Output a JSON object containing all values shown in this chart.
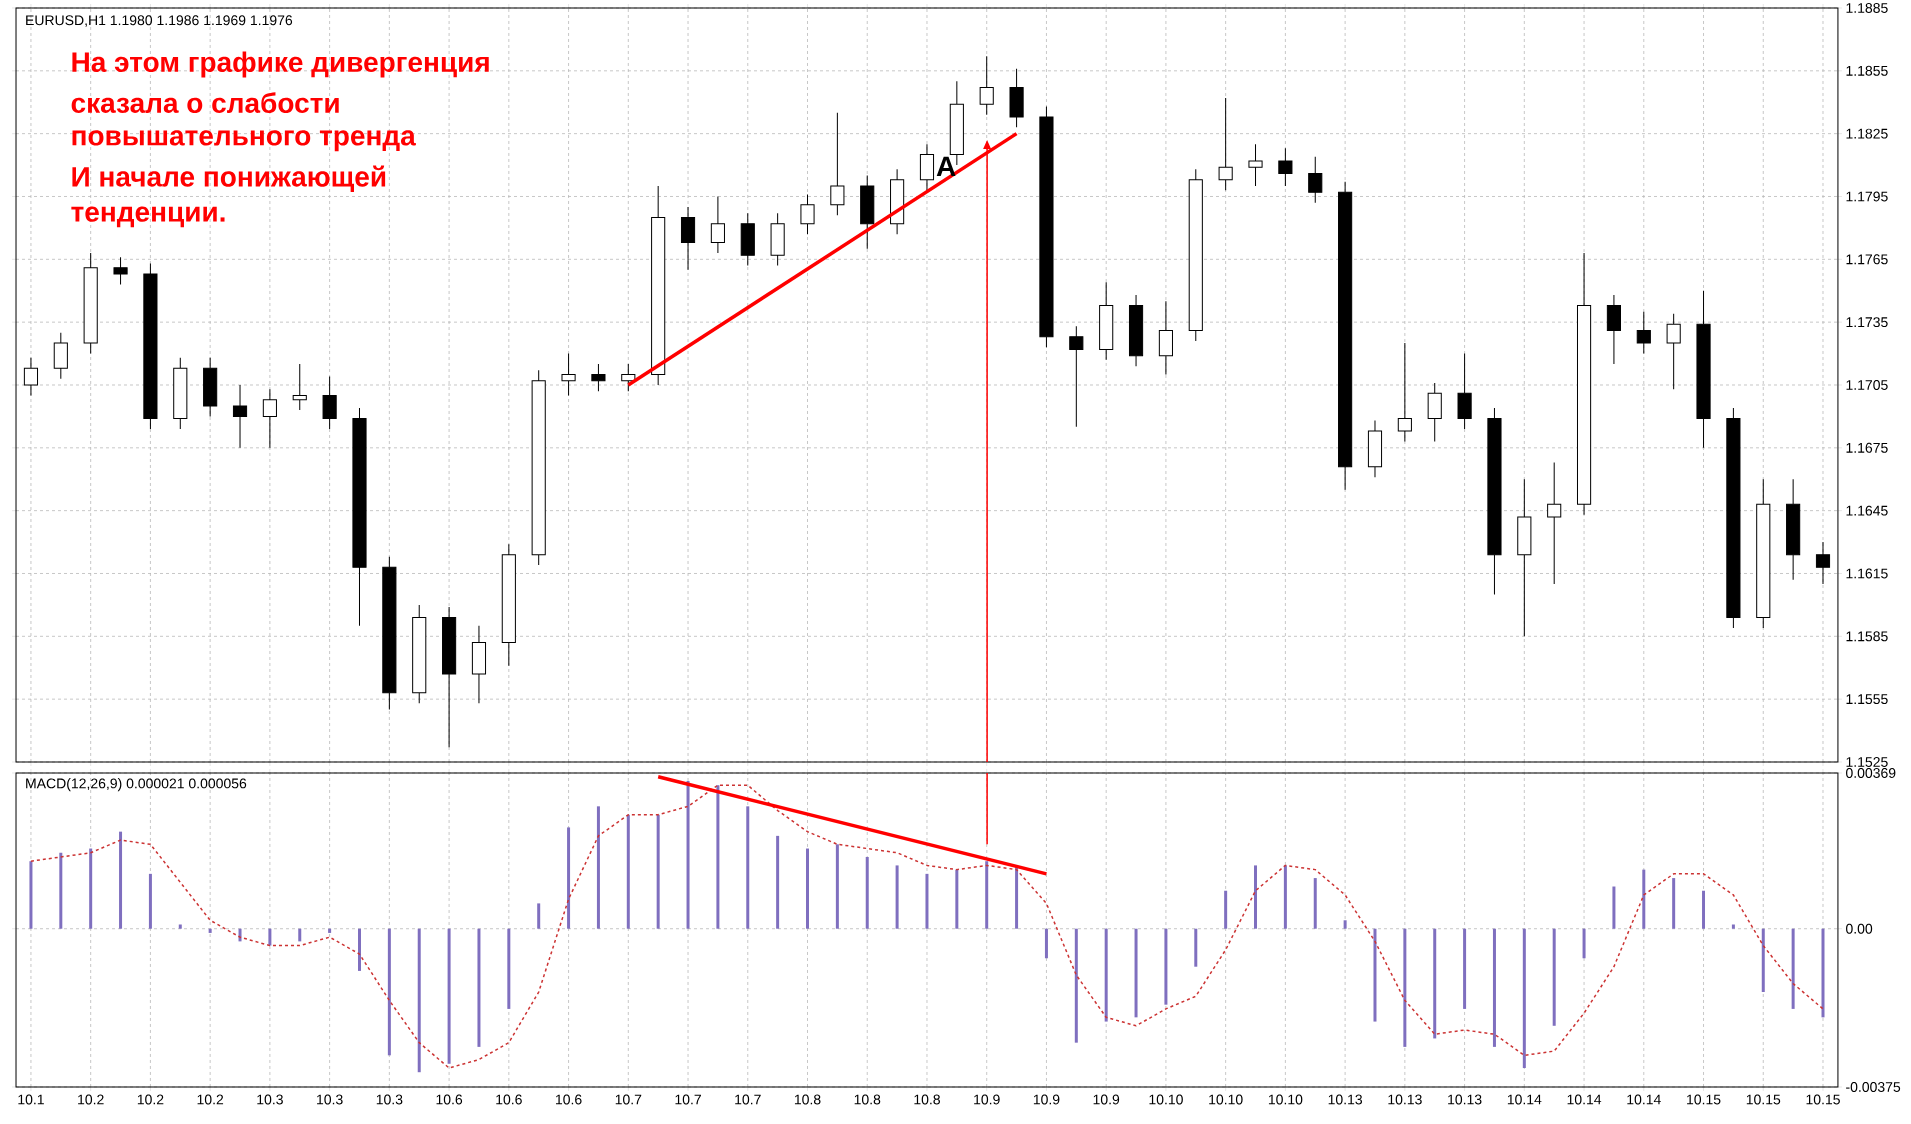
{
  "chart_data": [
    {
      "type": "candlestick",
      "title": "EURUSD,H1  1.1980 1.1986 1.1969 1.1976",
      "grid": true,
      "tick_labels": "y",
      "categories": [
        "10.1",
        null,
        "10.2",
        null,
        "10.2",
        null,
        "10.2",
        null,
        "10.3",
        null,
        "10.3",
        null,
        "10.3",
        null,
        "10.6",
        null,
        "10.6",
        null,
        "10.6",
        null,
        "10.7",
        null,
        "10.7",
        null,
        "10.7",
        null,
        "10.8",
        null,
        "10.8",
        null,
        "10.8",
        null,
        "10.9",
        null,
        "10.9",
        null,
        "10.9",
        null,
        "10.10",
        null,
        "10.10",
        null,
        "10.10",
        null,
        "10.13",
        null,
        "10.13",
        null,
        "10.13",
        null,
        "10.14",
        null,
        "10.14",
        null,
        "10.14",
        null,
        "10.15",
        null,
        "10.15",
        null,
        "10.15"
      ],
      "ylim": [
        1.1525,
        1.1885
      ],
      "yticks": [
        1.1525,
        1.1555,
        1.1585,
        1.1615,
        1.1645,
        1.1675,
        1.1705,
        1.1735,
        1.1765,
        1.1795,
        1.1825,
        1.1855,
        1.1885
      ],
      "annotations": [
        "На этом графике дивергенция",
        "сказала о слабости",
        "повышательного тренда",
        "И начале понижающей",
        "тенденции.",
        "A"
      ],
      "series": [
        {
          "color": "#000000",
          "ohlc": [
            [
              1.1705,
              1.1718,
              1.17,
              1.1713
            ],
            [
              1.1713,
              1.173,
              1.1708,
              1.1725
            ],
            [
              1.1725,
              1.1768,
              1.172,
              1.1761
            ],
            [
              1.1761,
              1.1766,
              1.1753,
              1.1758
            ],
            [
              1.1758,
              1.1763,
              1.1684,
              1.1689
            ],
            [
              1.1689,
              1.1718,
              1.1684,
              1.1713
            ],
            [
              1.1713,
              1.1718,
              1.169,
              1.1695
            ],
            [
              1.1695,
              1.1705,
              1.1675,
              1.169
            ],
            [
              1.169,
              1.1703,
              1.1675,
              1.1698
            ],
            [
              1.1698,
              1.1715,
              1.1693,
              1.17
            ],
            [
              1.17,
              1.1709,
              1.1684,
              1.1689
            ],
            [
              1.1689,
              1.1694,
              1.159,
              1.1618
            ],
            [
              1.1618,
              1.1623,
              1.155,
              1.1558
            ],
            [
              1.1558,
              1.16,
              1.1553,
              1.1594
            ],
            [
              1.1594,
              1.1599,
              1.1532,
              1.1567
            ],
            [
              1.1567,
              1.159,
              1.1553,
              1.1582
            ],
            [
              1.1582,
              1.1629,
              1.1571,
              1.1624
            ],
            [
              1.1624,
              1.1712,
              1.1619,
              1.1707
            ],
            [
              1.1707,
              1.172,
              1.17,
              1.171
            ],
            [
              1.171,
              1.1715,
              1.1702,
              1.1707
            ],
            [
              1.1707,
              1.1715,
              1.1702,
              1.171
            ],
            [
              1.171,
              1.18,
              1.1705,
              1.1785
            ],
            [
              1.1785,
              1.179,
              1.176,
              1.1773
            ],
            [
              1.1773,
              1.1795,
              1.1768,
              1.1782
            ],
            [
              1.1782,
              1.1787,
              1.1762,
              1.1767
            ],
            [
              1.1767,
              1.1787,
              1.1762,
              1.1782
            ],
            [
              1.1782,
              1.1796,
              1.1777,
              1.1791
            ],
            [
              1.1791,
              1.1835,
              1.1786,
              1.18
            ],
            [
              1.18,
              1.1805,
              1.177,
              1.1782
            ],
            [
              1.1782,
              1.1808,
              1.1777,
              1.1803
            ],
            [
              1.1803,
              1.182,
              1.1798,
              1.1815
            ],
            [
              1.1815,
              1.185,
              1.181,
              1.1839
            ],
            [
              1.1839,
              1.1862,
              1.1834,
              1.1847
            ],
            [
              1.1847,
              1.1856,
              1.1828,
              1.1833
            ],
            [
              1.1833,
              1.1838,
              1.1723,
              1.1728
            ],
            [
              1.1728,
              1.1733,
              1.1685,
              1.1722
            ],
            [
              1.1722,
              1.1754,
              1.1717,
              1.1743
            ],
            [
              1.1743,
              1.1748,
              1.1714,
              1.1719
            ],
            [
              1.1719,
              1.1745,
              1.171,
              1.1731
            ],
            [
              1.1731,
              1.1808,
              1.1726,
              1.1803
            ],
            [
              1.1803,
              1.1842,
              1.1798,
              1.1809
            ],
            [
              1.1809,
              1.182,
              1.18,
              1.1812
            ],
            [
              1.1812,
              1.1818,
              1.18,
              1.1806
            ],
            [
              1.1806,
              1.1814,
              1.1792,
              1.1797
            ],
            [
              1.1797,
              1.1802,
              1.1655,
              1.1666
            ],
            [
              1.1666,
              1.1688,
              1.1661,
              1.1683
            ],
            [
              1.1683,
              1.1725,
              1.1678,
              1.1689
            ],
            [
              1.1689,
              1.1706,
              1.1678,
              1.1701
            ],
            [
              1.1701,
              1.172,
              1.1684,
              1.1689
            ],
            [
              1.1689,
              1.1694,
              1.1605,
              1.1624
            ],
            [
              1.1624,
              1.166,
              1.1585,
              1.1642
            ],
            [
              1.1642,
              1.1668,
              1.161,
              1.1648
            ],
            [
              1.1648,
              1.1768,
              1.1643,
              1.1743
            ],
            [
              1.1743,
              1.1748,
              1.1715,
              1.1731
            ],
            [
              1.1731,
              1.174,
              1.172,
              1.1725
            ],
            [
              1.1725,
              1.1739,
              1.1703,
              1.1734
            ],
            [
              1.1734,
              1.175,
              1.1675,
              1.1689
            ],
            [
              1.1689,
              1.1694,
              1.1589,
              1.1594
            ],
            [
              1.1594,
              1.166,
              1.1589,
              1.1648
            ],
            [
              1.1648,
              1.166,
              1.1612,
              1.1624
            ],
            [
              1.1624,
              1.163,
              1.161,
              1.1618
            ]
          ]
        },
        {
          "type": "line",
          "color": "#ff0000",
          "line_style": "solid",
          "values": [
            null,
            null,
            null,
            null,
            null,
            null,
            null,
            null,
            null,
            null,
            null,
            null,
            null,
            null,
            null,
            null,
            null,
            null,
            null,
            null,
            1.1705,
            null,
            null,
            null,
            null,
            null,
            null,
            null,
            null,
            null,
            null,
            null,
            null,
            1.1825,
            null,
            null,
            null,
            null,
            null,
            null,
            null,
            null,
            null,
            null,
            null,
            null,
            null,
            null,
            null,
            null,
            null,
            null,
            null,
            null,
            null,
            null,
            null,
            null,
            null,
            null,
            null
          ]
        }
      ]
    },
    {
      "type": "bar",
      "title": "MACD(12,26,9)   0.000021  0.000056",
      "grid": true,
      "categories": [
        "10.1",
        null,
        "10.2",
        null,
        "10.2",
        null,
        "10.2",
        null,
        "10.3",
        null,
        "10.3",
        null,
        "10.3",
        null,
        "10.6",
        null,
        "10.6",
        null,
        "10.6",
        null,
        "10.7",
        null,
        "10.7",
        null,
        "10.7",
        null,
        "10.8",
        null,
        "10.8",
        null,
        "10.8",
        null,
        "10.9",
        null,
        "10.9",
        null,
        "10.9",
        null,
        "10.10",
        null,
        "10.10",
        null,
        "10.10",
        null,
        "10.13",
        null,
        "10.13",
        null,
        "10.13",
        null,
        "10.14",
        null,
        "10.14",
        null,
        "10.14",
        null,
        "10.15",
        null,
        "10.15",
        null,
        "10.15"
      ],
      "ylim": [
        -0.00375,
        0.00369
      ],
      "yticks": [
        -0.00375,
        {
          "value": 0,
          "label": "0.00"
        },
        0.00369
      ],
      "series": [
        {
          "color": "#7f6fbf",
          "values": [
            0.0016,
            0.0018,
            0.0019,
            0.0023,
            0.0013,
            0.0001,
            -0.0001,
            -0.0003,
            -0.0004,
            -0.0003,
            -0.0001,
            -0.001,
            -0.003,
            -0.0034,
            -0.0032,
            -0.0028,
            -0.0019,
            0.0006,
            0.0024,
            0.0029,
            0.0027,
            0.0027,
            0.0035,
            0.0034,
            0.0029,
            0.0022,
            0.0019,
            0.002,
            0.0017,
            0.0015,
            0.0013,
            0.0014,
            0.0016,
            0.0015,
            -0.0007,
            -0.0027,
            -0.0022,
            -0.0021,
            -0.0018,
            -0.0009,
            0.0009,
            0.0015,
            0.0015,
            0.0012,
            0.0002,
            -0.0022,
            -0.0028,
            -0.0026,
            -0.0019,
            -0.0028,
            -0.0033,
            -0.0023,
            -0.0007,
            0.001,
            0.0014,
            0.0012,
            0.0009,
            0.0001,
            -0.0015,
            -0.0019,
            -0.0021
          ]
        },
        {
          "type": "line",
          "color": "#cc3333",
          "line_style": "dashed",
          "values": [
            0.0016,
            0.0017,
            0.0018,
            0.0021,
            0.002,
            0.0011,
            0.0002,
            -0.0002,
            -0.0004,
            -0.0004,
            -0.0002,
            -0.0006,
            -0.0017,
            -0.0027,
            -0.0033,
            -0.0031,
            -0.0027,
            -0.0015,
            0.0007,
            0.0022,
            0.0027,
            0.0027,
            0.0029,
            0.0034,
            0.0034,
            0.0028,
            0.0023,
            0.002,
            0.0019,
            0.0018,
            0.0015,
            0.0014,
            0.0015,
            0.0014,
            0.0006,
            -0.0011,
            -0.0021,
            -0.0023,
            -0.0019,
            -0.0016,
            -0.0005,
            0.0009,
            0.0015,
            0.0014,
            0.0008,
            -0.0003,
            -0.0017,
            -0.0025,
            -0.0024,
            -0.0025,
            -0.003,
            -0.0029,
            -0.002,
            -0.0009,
            0.0008,
            0.0013,
            0.0013,
            0.0008,
            -0.0004,
            -0.0013,
            -0.0019
          ]
        },
        {
          "type": "line",
          "color": "#ff0000",
          "line_style": "solid",
          "values": [
            null,
            null,
            null,
            null,
            null,
            null,
            null,
            null,
            null,
            null,
            null,
            null,
            null,
            null,
            null,
            null,
            null,
            null,
            null,
            null,
            null,
            0.0036,
            null,
            null,
            null,
            null,
            null,
            null,
            null,
            null,
            null,
            null,
            null,
            null,
            0.0013,
            null,
            null,
            null,
            null,
            null,
            null,
            null,
            null,
            null,
            null,
            null,
            null,
            null,
            null,
            null,
            null,
            null,
            null,
            null,
            null,
            null,
            null,
            null,
            null,
            null,
            null
          ]
        }
      ]
    }
  ]
}
